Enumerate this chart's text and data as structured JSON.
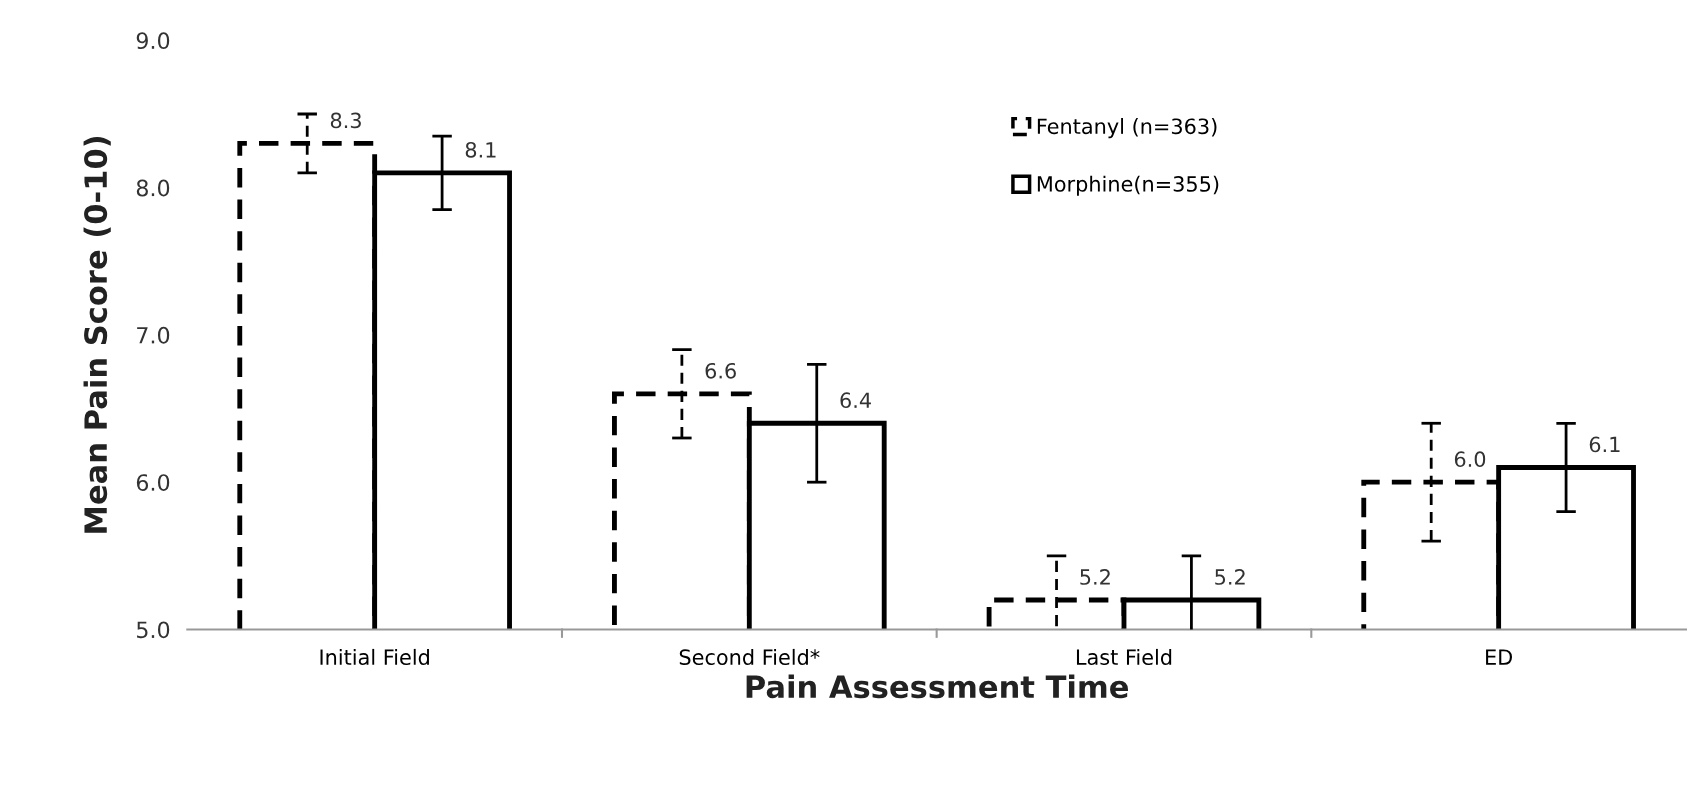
{
  "chart_data": {
    "type": "bar",
    "xlabel": "Pain Assessment Time",
    "ylabel": "Mean Pain Score (0-10)",
    "categories": [
      "Initial Field",
      "Second Field*",
      "Last Field",
      "ED"
    ],
    "series": [
      {
        "name": "Fentanyl (n=363)",
        "color": "#ffffff",
        "line_style": "dashed",
        "values": [
          8.3,
          6.6,
          5.2,
          6.0
        ],
        "value_labels": [
          "8.3",
          "6.6",
          "5.2",
          "6.0"
        ],
        "errors": [
          0.2,
          0.3,
          0.3,
          0.4
        ]
      },
      {
        "name": "Morphine(n=355)",
        "color": "#ffffff",
        "line_style": "solid",
        "values": [
          8.1,
          6.4,
          5.2,
          6.1
        ],
        "value_labels": [
          "8.1",
          "6.4",
          "5.2",
          "6.1"
        ],
        "errors": [
          0.25,
          0.4,
          0.3,
          0.3
        ]
      }
    ],
    "ylim": [
      5.0,
      9.0
    ],
    "yticks": [
      {
        "value": 5,
        "label": "5.0"
      },
      {
        "value": 6,
        "label": "6.0"
      },
      {
        "value": 7,
        "label": "7.0"
      },
      {
        "value": 8,
        "label": "8.0"
      },
      {
        "value": 9,
        "label": "9.0"
      }
    ],
    "legend": "top",
    "grid": false
  }
}
